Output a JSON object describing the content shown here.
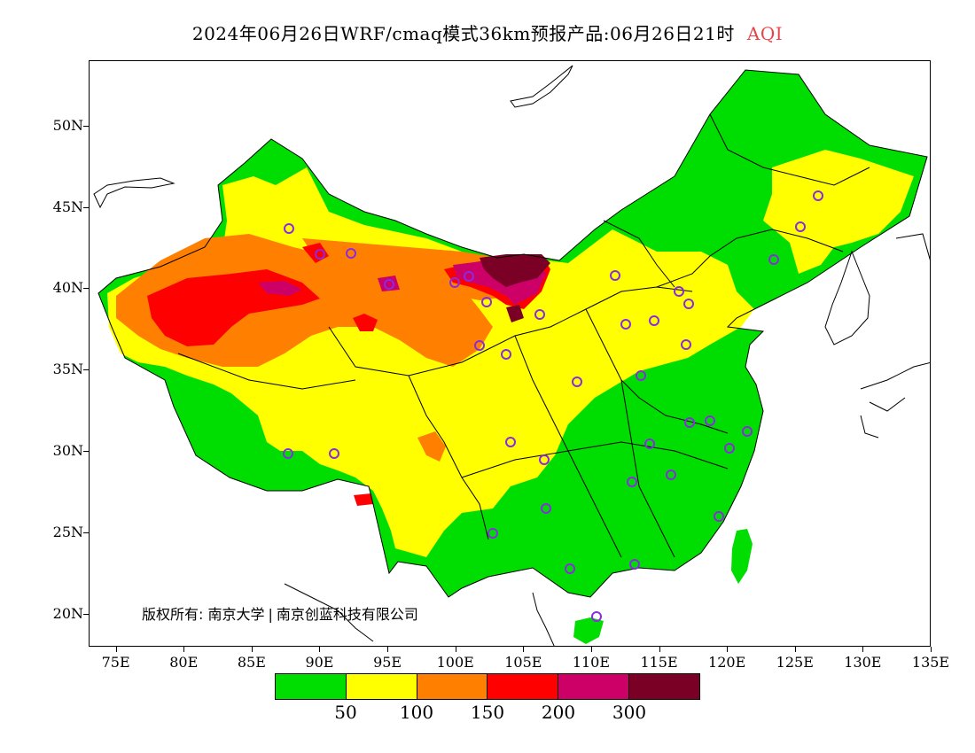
{
  "title": {
    "text": "2024年06月26日WRF/cmaq模式36km预报产品:06月26日21时",
    "variable": "AQI",
    "variable_color": "#e8454a"
  },
  "axes": {
    "y_ticks": [
      "50N",
      "45N",
      "40N",
      "35N",
      "30N",
      "25N",
      "20N"
    ],
    "x_ticks": [
      "75E",
      "80E",
      "85E",
      "90E",
      "95E",
      "100E",
      "105E",
      "110E",
      "115E",
      "120E",
      "125E",
      "130E",
      "135E"
    ],
    "lon_range": [
      73,
      135
    ],
    "lat_range": [
      18,
      54
    ]
  },
  "legend": {
    "colors": [
      "#00dd00",
      "#ffff00",
      "#ff8000",
      "#ff0000",
      "#cc0066",
      "#7a0026"
    ],
    "labels": [
      "50",
      "100",
      "150",
      "200",
      "300"
    ]
  },
  "copyright": {
    "prefix": "版权所有:",
    "org1": "南京大学",
    "org2": "南京创蓝科技有限公司"
  },
  "map_colors": {
    "good": "#00dd00",
    "moderate": "#ffff00",
    "sensitive": "#ff8000",
    "unhealthy": "#ff0000",
    "very_unhealthy": "#cc0066",
    "hazardous": "#7a0026",
    "station_marker": "#8a2be2",
    "border": "#000000"
  }
}
